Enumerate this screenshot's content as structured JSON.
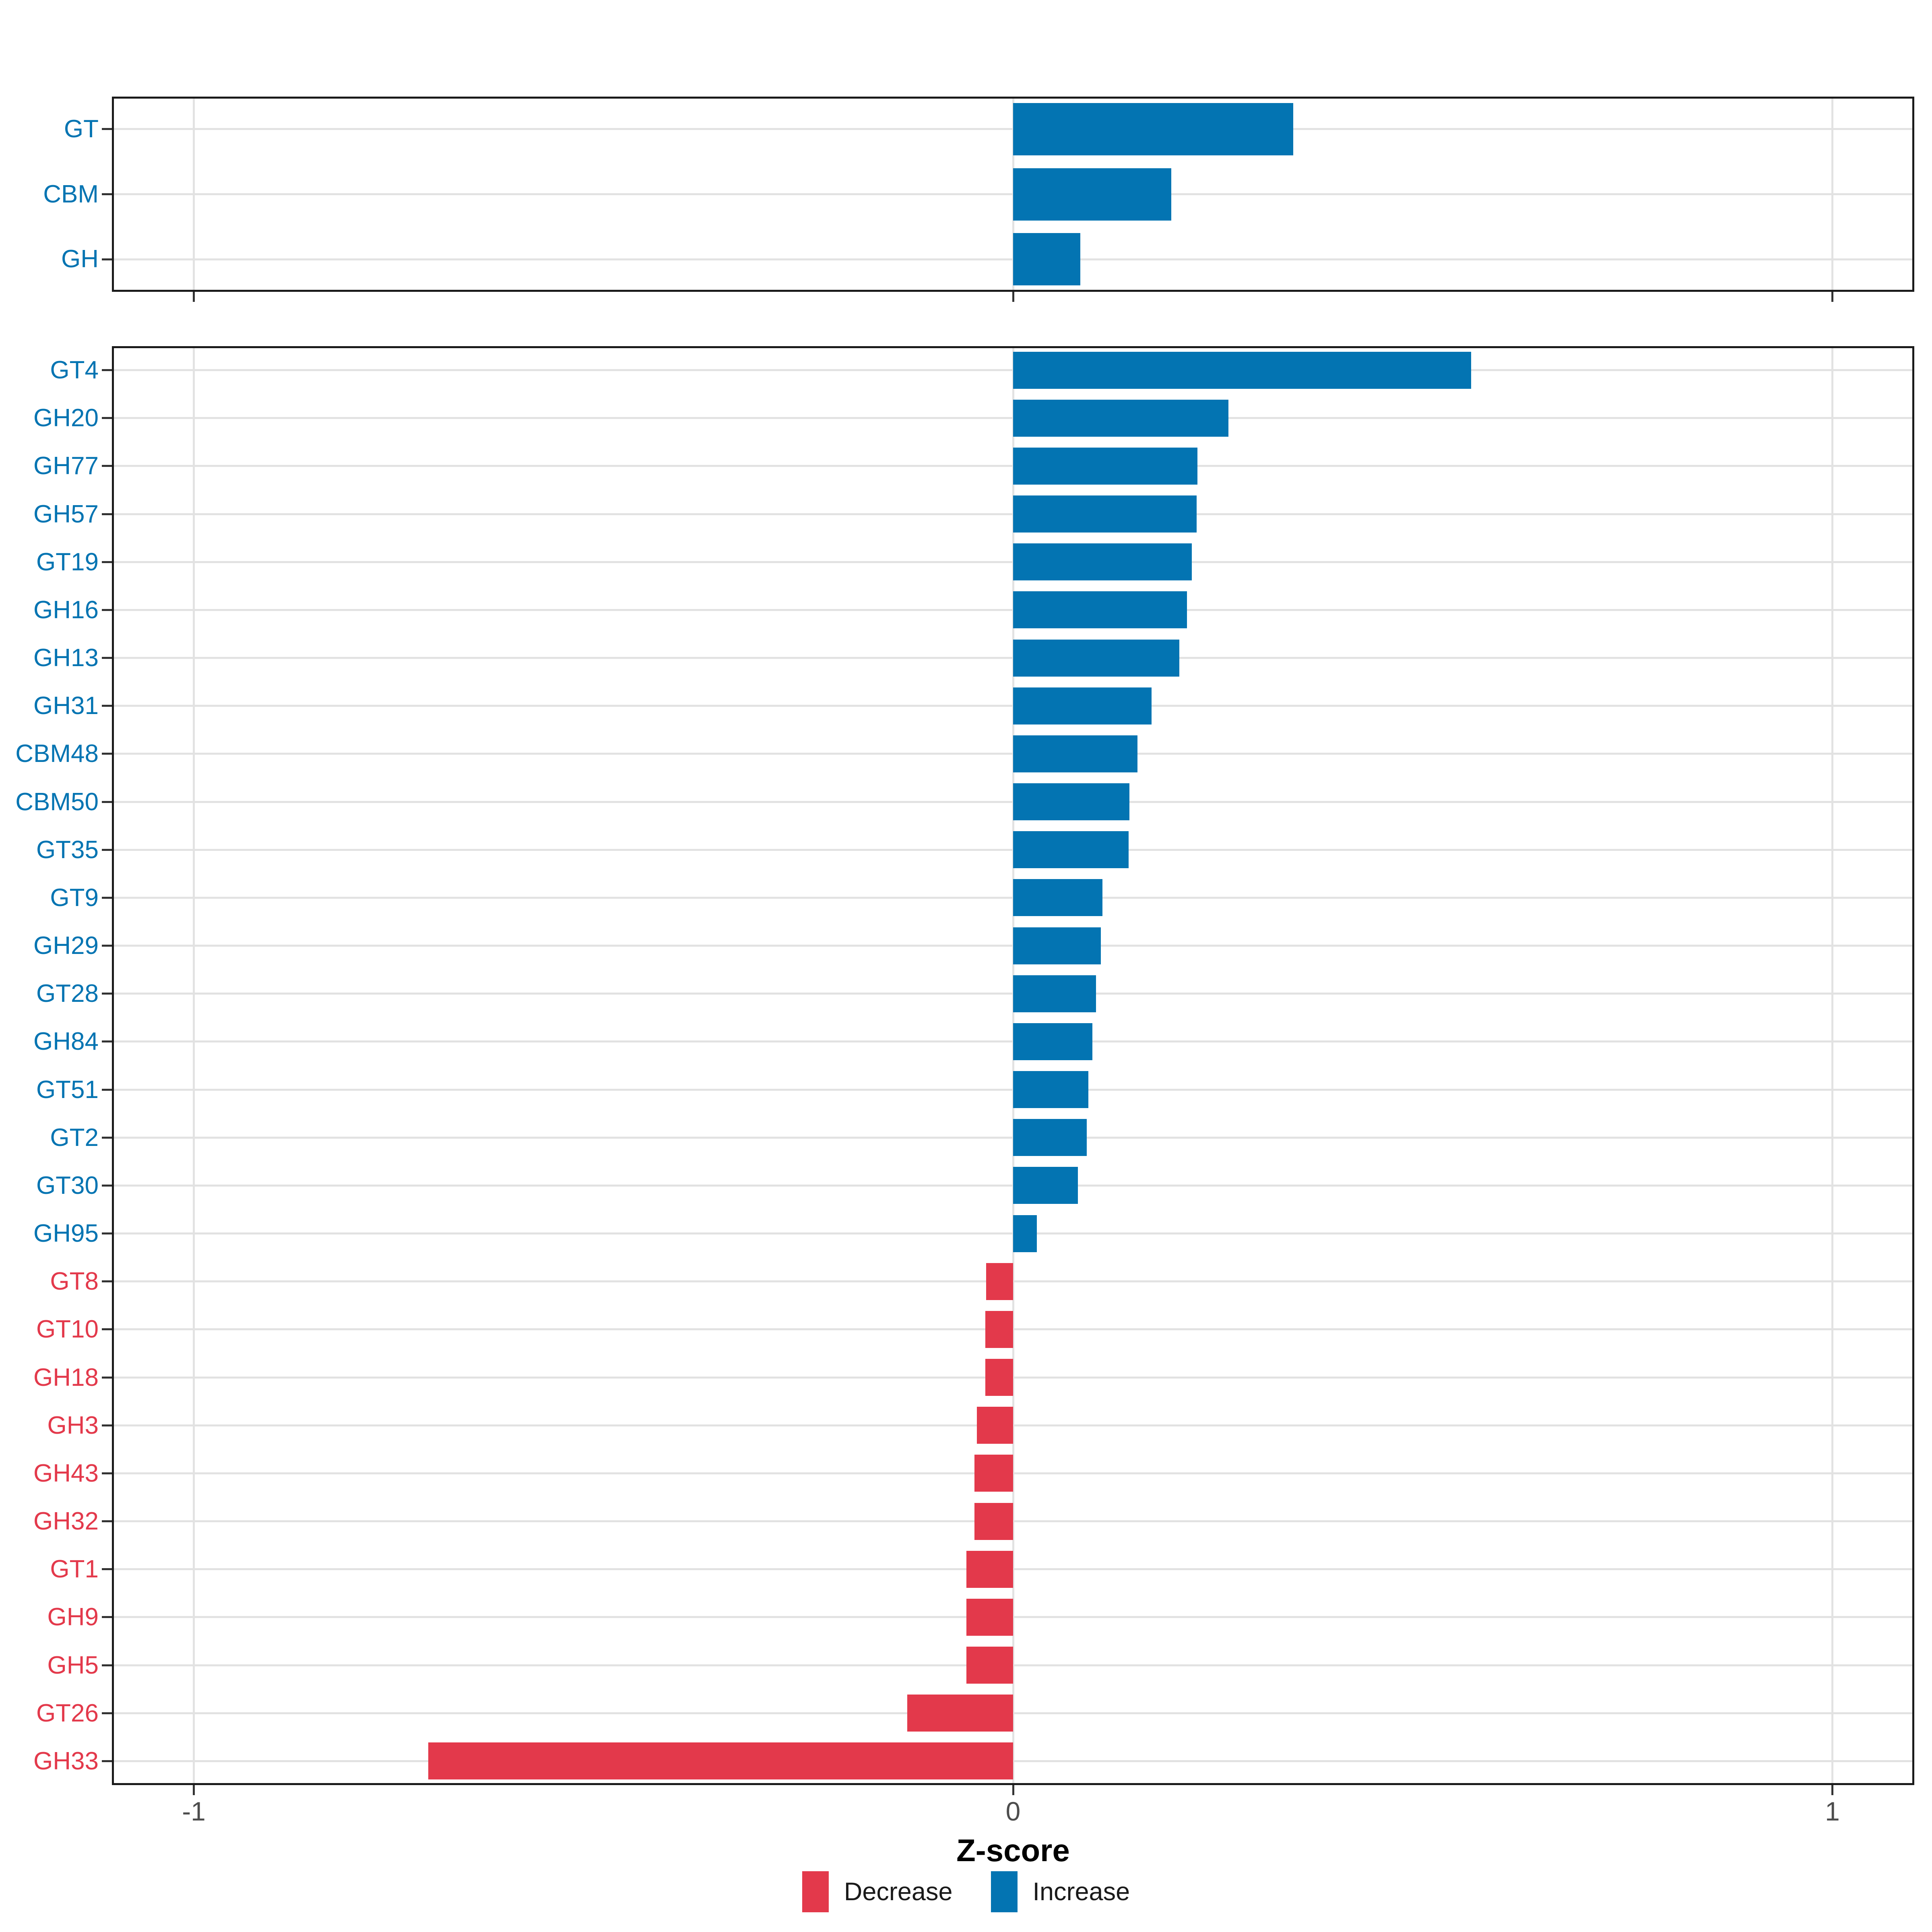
{
  "figure": {
    "background": "#ffffff"
  },
  "colors": {
    "increase": "#0374B2",
    "decrease": "#E3394B",
    "gridline": "#e2e2e2",
    "panel_border": "#1a1a1a",
    "tick_mark": "#333333",
    "axis_text": "#4d4d4d"
  },
  "axis": {
    "title": "Z-score",
    "ticks": [
      {
        "value": -1,
        "label": "-1"
      },
      {
        "value": 0,
        "label": "0"
      },
      {
        "value": 1,
        "label": "1"
      }
    ],
    "xlim": [
      -1.1,
      1.1
    ]
  },
  "legend": {
    "items": [
      {
        "label": "Decrease",
        "color": "#E3394B",
        "key": "decrease"
      },
      {
        "label": "Increase",
        "color": "#0374B2",
        "key": "increase"
      }
    ]
  },
  "chart_data": [
    {
      "id": "top-panel",
      "type": "bar",
      "orientation": "horizontal",
      "xlabel": "Z-score",
      "xlim": [
        -1.1,
        1.1
      ],
      "x_ticks": [
        -1,
        0,
        1
      ],
      "grid": true,
      "legend_position": "bottom",
      "categories": [
        "GT",
        "CBM",
        "GH"
      ],
      "values": [
        0.342,
        0.193,
        0.082
      ],
      "directions": [
        "increase",
        "increase",
        "increase"
      ]
    },
    {
      "id": "bottom-panel",
      "type": "bar",
      "orientation": "horizontal",
      "xlabel": "Z-score",
      "xlim": [
        -1.1,
        1.1
      ],
      "x_ticks": [
        -1,
        0,
        1
      ],
      "grid": true,
      "legend_position": "bottom",
      "categories": [
        "GT4",
        "GH20",
        "GH77",
        "GH57",
        "GT19",
        "GH16",
        "GH13",
        "GH31",
        "CBM48",
        "CBM50",
        "GT35",
        "GT9",
        "GH29",
        "GT28",
        "GH84",
        "GT51",
        "GT2",
        "GT30",
        "GH95",
        "GT8",
        "GT10",
        "GH18",
        "GH3",
        "GH43",
        "GH32",
        "GT1",
        "GH9",
        "GH5",
        "GT26",
        "GH33"
      ],
      "values": [
        0.559,
        0.263,
        0.225,
        0.224,
        0.218,
        0.212,
        0.203,
        0.169,
        0.152,
        0.142,
        0.141,
        0.109,
        0.107,
        0.101,
        0.097,
        0.092,
        0.09,
        0.079,
        0.029,
        -0.033,
        -0.034,
        -0.034,
        -0.044,
        -0.047,
        -0.047,
        -0.057,
        -0.057,
        -0.057,
        -0.129,
        -0.714
      ],
      "directions": [
        "increase",
        "increase",
        "increase",
        "increase",
        "increase",
        "increase",
        "increase",
        "increase",
        "increase",
        "increase",
        "increase",
        "increase",
        "increase",
        "increase",
        "increase",
        "increase",
        "increase",
        "increase",
        "increase",
        "decrease",
        "decrease",
        "decrease",
        "decrease",
        "decrease",
        "decrease",
        "decrease",
        "decrease",
        "decrease",
        "decrease",
        "decrease"
      ]
    }
  ]
}
